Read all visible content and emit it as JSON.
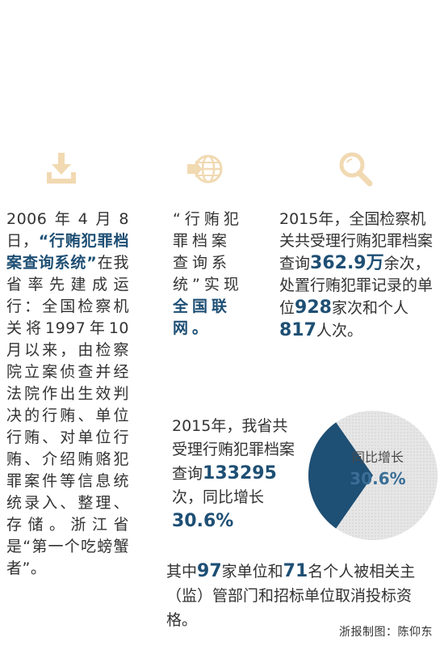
{
  "icons": [
    "download-icon",
    "globe-icon",
    "search-icon"
  ],
  "colors": {
    "accent": "#1e4f74",
    "icon": "#f1d9b2",
    "pie_light": "#e3e3e3"
  },
  "col1": {
    "t1": "2006年4月8日，",
    "t2": "“行贿犯罪档案查询系统”",
    "t3": "在我省率先建成运行：全国检察机关将1997年10月以来，由检察院立案侦查并经法院作出生效判决的行贿、单位行贿、对单位行贿、介绍贿赂犯罪案件等信息统统录入、整理、存储。浙江省是“第一个吃螃蟹者”。"
  },
  "col2": {
    "t1": "“行贿犯罪档案查询系统”实现",
    "t2": "全国联网。"
  },
  "col3": {
    "t1": "2015年，全国检察机关共受理行贿犯罪档案查询",
    "n1": "362.9万",
    "t2": "余次，处置行贿犯罪记录的单位",
    "n2": "928",
    "t3": "家次和个人",
    "n3": "817",
    "t4": "人次。"
  },
  "mid": {
    "t1": "2015年，我省共受理行贿犯罪档案查询",
    "n1": "133295",
    "t2": "次，同比增长",
    "n2": "30.6%"
  },
  "bottom": {
    "t1": "其中",
    "n1": "97",
    "t2": "家单位和",
    "n2": "71",
    "t3": "名个人被相关主（监）管部门和招标单位取消投标资格。"
  },
  "pie": {
    "label": "同比增长",
    "value_text": "30.6%",
    "fraction": 0.306
  },
  "credit": "浙报制图：陈仰东"
}
